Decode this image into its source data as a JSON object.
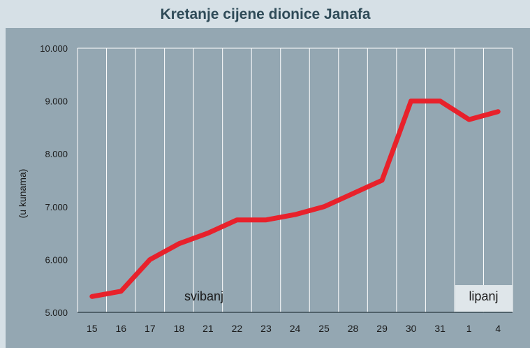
{
  "colors": {
    "page_background": "#d6e0e6",
    "panel_background": "#94a7b2",
    "grid": "#ffffff",
    "line": "#e8212b",
    "title_text": "#2f4b58",
    "axis_text": "#1a1a1a",
    "month_label_background": "#dfe6ea"
  },
  "chart_data": {
    "type": "line",
    "title": "Kretanje cijene dionice Janafa",
    "ylabel": "(u kunama)",
    "xlabel": "",
    "categories": [
      "15",
      "16",
      "17",
      "18",
      "21",
      "22",
      "23",
      "24",
      "25",
      "28",
      "29",
      "30",
      "31",
      "1",
      "4"
    ],
    "series": [
      {
        "values": [
          5300,
          5400,
          6000,
          6300,
          6500,
          6750,
          6750,
          6850,
          7000,
          7250,
          7500,
          9000,
          9000,
          8650,
          8800
        ]
      }
    ],
    "ylim": [
      5000,
      10000
    ],
    "yticks": [
      5000,
      6000,
      7000,
      8000,
      9000,
      10000
    ],
    "ytick_labels": [
      "5.000",
      "6.000",
      "7.000",
      "8.000",
      "9.000",
      "10.000"
    ],
    "grid": "vertical",
    "month_labels": [
      {
        "label": "svibanj",
        "from": "15",
        "to": "31"
      },
      {
        "label": "lipanj",
        "from": "1",
        "to": "4"
      }
    ]
  }
}
